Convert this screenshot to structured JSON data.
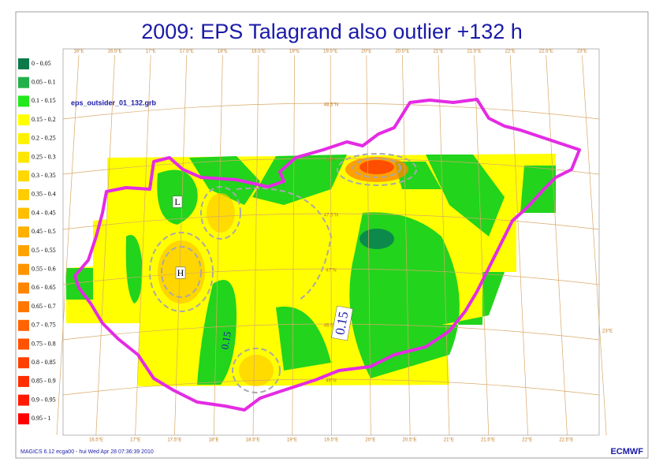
{
  "header": {
    "title": "2009: EPS Talagrand also outlier +132 h"
  },
  "legend": [
    {
      "label": "0 - 0.05",
      "color": "#0b7a4b"
    },
    {
      "label": "0.05 - 0.1",
      "color": "#22b04a"
    },
    {
      "label": "0.1 - 0.15",
      "color": "#22e81c"
    },
    {
      "label": "0.15 - 0.2",
      "color": "#ffff00"
    },
    {
      "label": "0.2 - 0.25",
      "color": "#fff200"
    },
    {
      "label": "0.25 - 0.3",
      "color": "#ffe600"
    },
    {
      "label": "0.3 - 0.35",
      "color": "#ffd800"
    },
    {
      "label": "0.35 - 0.4",
      "color": "#ffcc00"
    },
    {
      "label": "0.4 - 0.45",
      "color": "#ffbf00"
    },
    {
      "label": "0.45 - 0.5",
      "color": "#ffb000"
    },
    {
      "label": "0.5 - 0.55",
      "color": "#ffa300"
    },
    {
      "label": "0.55 - 0.6",
      "color": "#ff9400"
    },
    {
      "label": "0.6 - 0.65",
      "color": "#ff8500"
    },
    {
      "label": "0.65 - 0.7",
      "color": "#ff7600"
    },
    {
      "label": "0.7 - 0.75",
      "color": "#ff6400"
    },
    {
      "label": "0.75 - 0.8",
      "color": "#ff5200"
    },
    {
      "label": "0.8 - 0.85",
      "color": "#ff4000"
    },
    {
      "label": "0.85 - 0.9",
      "color": "#ff2e00"
    },
    {
      "label": "0.9 - 0.95",
      "color": "#ff1a00"
    },
    {
      "label": "0.95 - 1",
      "color": "#ff0000"
    }
  ],
  "map": {
    "file_label": "eps_outsider_01_132.grb",
    "lon_labels_top": [
      "16°E",
      "16.5°E",
      "17°E",
      "17.5°E",
      "18°E",
      "18.5°E",
      "19°E",
      "19.5°E",
      "20°E",
      "20.5°E",
      "21°E",
      "21.5°E",
      "22°E",
      "22.5°E",
      "23°E"
    ],
    "lon_labels_bottom": [
      "16.5°E",
      "17°E",
      "17.5°E",
      "18°E",
      "18.5°E",
      "19°E",
      "19.5°E",
      "20°E",
      "20.5°E",
      "21°E",
      "21.5°E",
      "22°E",
      "22.5°E"
    ],
    "lat_labels": [
      "48.5°N",
      "48°N",
      "47.5°N",
      "47°N",
      "46.5°N",
      "46°N"
    ],
    "right_label": "23°E",
    "contour_labels": [
      "L",
      "H",
      "0.15",
      "0.15"
    ]
  },
  "footer": {
    "info": "MAGICS 6.12 ecga00 - hui Wed Apr 28 07:36:39 2010",
    "logo": "ECMWF"
  }
}
